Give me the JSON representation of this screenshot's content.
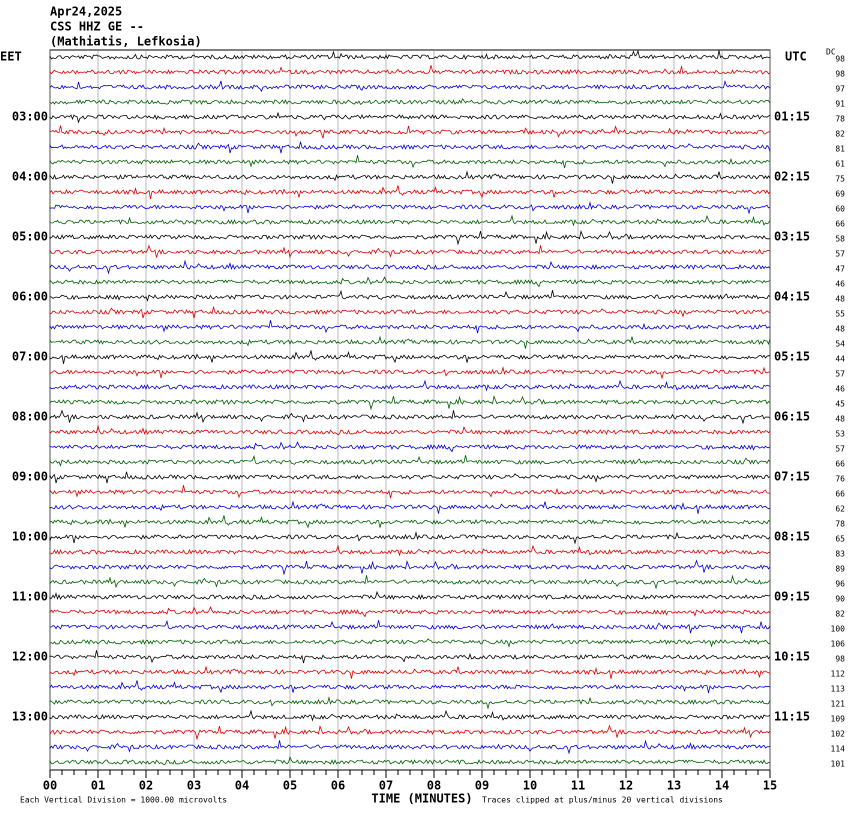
{
  "header": {
    "date": "Apr24,2025",
    "station": "CSS HHZ GE --",
    "location": "(Mathiatis, Lefkosia)"
  },
  "left_axis": {
    "title": "EET",
    "labels": [
      "03:00",
      "04:00",
      "05:00",
      "06:00",
      "07:00",
      "08:00",
      "09:00",
      "10:00",
      "11:00",
      "12:00",
      "13:00"
    ]
  },
  "right_axis": {
    "title": "UTC",
    "labels": [
      "01:15",
      "02:15",
      "03:15",
      "04:15",
      "05:15",
      "06:15",
      "07:15",
      "08:15",
      "09:15",
      "10:15",
      "11:15"
    ]
  },
  "dc": {
    "title": "DC",
    "values": [
      98,
      98,
      97,
      91,
      78,
      82,
      81,
      61,
      75,
      69,
      60,
      66,
      58,
      57,
      47,
      46,
      48,
      55,
      48,
      54,
      44,
      57,
      46,
      45,
      48,
      53,
      57,
      66,
      76,
      66,
      62,
      78,
      65,
      83,
      89,
      96,
      90,
      82,
      100,
      106,
      98,
      112,
      113,
      121,
      109,
      102,
      114,
      101
    ]
  },
  "trace_colors": [
    "#000000",
    "#dd0000",
    "#0000dd",
    "#006000"
  ],
  "x_axis": {
    "ticks": [
      "00",
      "01",
      "02",
      "03",
      "04",
      "05",
      "06",
      "07",
      "08",
      "09",
      "10",
      "11",
      "12",
      "13",
      "14",
      "15"
    ],
    "label": "TIME (MINUTES)"
  },
  "footer": {
    "left": "Each Vertical Division = 1000.00 microvolts",
    "right": "Traces clipped at plus/minus 20 vertical divisions"
  }
}
